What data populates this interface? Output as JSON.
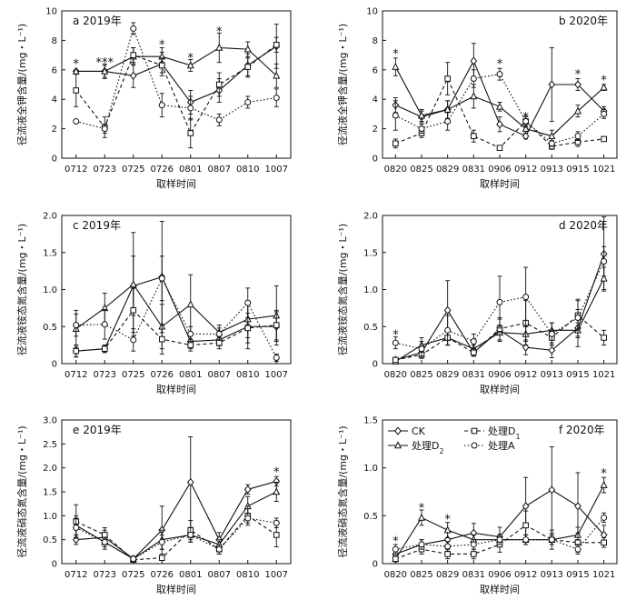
{
  "chart_data": [
    {
      "type": "line",
      "title": "a 2019年",
      "xlabel": "取样时间",
      "ylabel": "径流液全钾含量/(mg・L⁻¹)",
      "ylim": [
        0,
        10
      ],
      "yticks": [
        "0",
        "2",
        "4",
        "6",
        "8",
        "10"
      ],
      "categories": [
        "0712",
        "0723",
        "0725",
        "0726",
        "0801",
        "0807",
        "0810",
        "1007"
      ],
      "series": [
        {
          "name": "CK",
          "marker": "diamond",
          "dash": "solid",
          "values": [
            5.9,
            5.9,
            5.6,
            6.4,
            3.8,
            4.6,
            6.3,
            7.6
          ],
          "errors": [
            0,
            0.4,
            0.8,
            0.8,
            0.8,
            0.8,
            0.8,
            1.5
          ]
        },
        {
          "name": "处理D₂",
          "marker": "triangle",
          "dash": "solid",
          "values": [
            5.9,
            5.9,
            6.9,
            6.9,
            6.3,
            7.5,
            7.4,
            5.6
          ],
          "errors": [
            0,
            0.5,
            0.6,
            0.6,
            0.4,
            1.0,
            0.5,
            0.8
          ]
        },
        {
          "name": "处理D₁",
          "marker": "square",
          "dash": "dashed",
          "values": [
            4.6,
            2.1,
            7.0,
            6.3,
            1.7,
            5.0,
            6.2,
            7.7
          ],
          "errors": [
            1.1,
            0.7,
            0.5,
            0.5,
            1.0,
            0.8,
            0.6,
            0.5
          ]
        },
        {
          "name": "处理A",
          "marker": "circle",
          "dash": "dotted",
          "values": [
            2.5,
            2.0,
            8.8,
            3.6,
            3.4,
            2.6,
            3.8,
            4.1
          ],
          "errors": [
            0,
            0.3,
            0.4,
            0.8,
            0.8,
            0.4,
            0.4,
            0.6
          ]
        }
      ],
      "annotations": [
        {
          "category": "0712",
          "text": "*",
          "y": 6.5
        },
        {
          "category": "0723",
          "text": "***",
          "y": 6.6
        },
        {
          "category": "0726",
          "text": "*",
          "y": 7.8
        },
        {
          "category": "0801",
          "text": "*",
          "y": 6.9
        },
        {
          "category": "0807",
          "text": "*",
          "y": 8.7
        }
      ]
    },
    {
      "type": "line",
      "title": "b 2020年",
      "xlabel": "取样时间",
      "ylabel": "径流液全钾含量/(mg・L⁻¹)",
      "ylim": [
        0,
        10
      ],
      "yticks": [
        "0",
        "2",
        "4",
        "6",
        "8",
        "10"
      ],
      "categories": [
        "0820",
        "0825",
        "0829",
        "0831",
        "0906",
        "0912",
        "0913",
        "0915",
        "1021"
      ],
      "series": [
        {
          "name": "CK",
          "marker": "diamond",
          "dash": "solid",
          "values": [
            3.6,
            2.8,
            3.3,
            6.6,
            2.3,
            1.5,
            5.0,
            5.0,
            3.2
          ],
          "errors": [
            0.5,
            0.4,
            0.6,
            1.2,
            0.5,
            0.2,
            2.5,
            0.4,
            0.3
          ]
        },
        {
          "name": "处理D₂",
          "marker": "triangle",
          "dash": "solid",
          "values": [
            6.2,
            2.9,
            3.3,
            4.2,
            3.5,
            2.0,
            1.5,
            3.2,
            4.8
          ],
          "errors": [
            0.6,
            0.4,
            0.6,
            0.8,
            0.3,
            0.3,
            0.4,
            0.4,
            0.2
          ]
        },
        {
          "name": "处理D₁",
          "marker": "square",
          "dash": "dashed",
          "values": [
            1.0,
            1.7,
            5.4,
            1.5,
            0.7,
            2.5,
            0.8,
            1.1,
            1.3
          ],
          "errors": [
            0.3,
            0.3,
            1.1,
            0.4,
            0.1,
            0.3,
            0.2,
            0.3,
            0.1
          ]
        },
        {
          "name": "处理A",
          "marker": "circle",
          "dash": "dotted",
          "values": [
            2.9,
            2.0,
            2.5,
            5.4,
            5.7,
            2.5,
            1.0,
            1.5,
            3.0
          ],
          "errors": [
            1.0,
            0.3,
            0.6,
            0.6,
            0.4,
            0.4,
            0.2,
            0.3,
            0.3
          ]
        }
      ],
      "annotations": [
        {
          "category": "0820",
          "text": "*",
          "y": 7.2
        },
        {
          "category": "0906",
          "text": "*",
          "y": 6.5
        },
        {
          "category": "0912",
          "text": "*",
          "y": 2.9
        },
        {
          "category": "0915",
          "text": "*",
          "y": 5.8
        },
        {
          "category": "1021",
          "text": "*",
          "y": 5.4
        }
      ]
    },
    {
      "type": "line",
      "title": "c 2019年",
      "xlabel": "取样时间",
      "ylabel": "径流液铵态氮含量/(mg・L⁻¹)",
      "ylim": [
        0,
        2.0
      ],
      "yticks": [
        "0",
        "0.5",
        "1.0",
        "1.5",
        "2.0"
      ],
      "categories": [
        "0712",
        "0723",
        "0725",
        "0726",
        "0801",
        "0807",
        "0810",
        "1007"
      ],
      "series": [
        {
          "name": "CK",
          "marker": "diamond",
          "dash": "solid",
          "values": [
            0.17,
            0.2,
            1.05,
            1.17,
            0.3,
            0.32,
            0.5,
            0.5
          ],
          "errors": [
            0.08,
            0.05,
            0.4,
            0.75,
            0.1,
            0.08,
            0.3,
            0.2
          ]
        },
        {
          "name": "处理D₂",
          "marker": "triangle",
          "dash": "solid",
          "values": [
            0.47,
            0.75,
            1.07,
            0.5,
            0.8,
            0.42,
            0.6,
            0.65
          ],
          "errors": [
            0.25,
            0.2,
            0.7,
            0.3,
            0.4,
            0.1,
            0.25,
            0.4
          ]
        },
        {
          "name": "处理D₁",
          "marker": "square",
          "dash": "dashed",
          "values": [
            0.17,
            0.2,
            0.72,
            0.33,
            0.25,
            0.28,
            0.48,
            0.52
          ],
          "errors": [
            0.08,
            0.05,
            0.3,
            0.2,
            0.08,
            0.08,
            0.2,
            0.2
          ]
        },
        {
          "name": "处理A",
          "marker": "circle",
          "dash": "dotted",
          "values": [
            0.52,
            0.53,
            0.32,
            1.15,
            0.4,
            0.4,
            0.82,
            0.08
          ],
          "errors": [
            0.15,
            0.2,
            0.15,
            0.3,
            0.1,
            0.08,
            0.2,
            0.05
          ]
        }
      ],
      "annotations": []
    },
    {
      "type": "line",
      "title": "d 2020年",
      "xlabel": "取样时间",
      "ylabel": "径流液铵态氮含量/(mg・L⁻¹)",
      "ylim": [
        0,
        2.0
      ],
      "yticks": [
        "0",
        "0.5",
        "1.0",
        "1.5",
        "2.0"
      ],
      "categories": [
        "0820",
        "0825",
        "0829",
        "0831",
        "0906",
        "0912",
        "0913",
        "0915",
        "1021"
      ],
      "series": [
        {
          "name": "CK",
          "marker": "diamond",
          "dash": "solid",
          "values": [
            0.05,
            0.15,
            0.72,
            0.15,
            0.45,
            0.22,
            0.18,
            0.48,
            1.48
          ],
          "errors": [
            0.03,
            0.05,
            0.4,
            0.05,
            0.15,
            0.1,
            0.1,
            0.25,
            0.5
          ]
        },
        {
          "name": "处理D₂",
          "marker": "triangle",
          "dash": "solid",
          "values": [
            0.03,
            0.25,
            0.35,
            0.2,
            0.42,
            0.4,
            0.45,
            0.45,
            1.15
          ],
          "errors": [
            0.03,
            0.1,
            0.1,
            0.05,
            0.1,
            0.1,
            0.1,
            0.1,
            0.15
          ]
        },
        {
          "name": "处理D₁",
          "marker": "square",
          "dash": "dashed",
          "values": [
            0.05,
            0.12,
            0.35,
            0.15,
            0.47,
            0.55,
            0.35,
            0.65,
            0.35
          ],
          "errors": [
            0.03,
            0.05,
            0.1,
            0.05,
            0.15,
            0.3,
            0.1,
            0.2,
            0.1
          ]
        },
        {
          "name": "处理A",
          "marker": "circle",
          "dash": "dotted",
          "values": [
            0.28,
            0.2,
            0.45,
            0.3,
            0.83,
            0.9,
            0.4,
            0.62,
            1.38
          ],
          "errors": [
            0.08,
            0.1,
            0.2,
            0.1,
            0.35,
            0.4,
            0.15,
            0.25,
            0.2
          ]
        }
      ],
      "annotations": [
        {
          "category": "0820",
          "text": "*",
          "y": 0.41
        }
      ]
    },
    {
      "type": "line",
      "title": "e 2019年",
      "xlabel": "取样时间",
      "ylabel": "径流液硝态氮含量/(mg・L⁻¹)",
      "ylim": [
        0,
        3.0
      ],
      "yticks": [
        "0",
        "0.5",
        "1.0",
        "1.5",
        "2.0",
        "2.5",
        "3.0"
      ],
      "categories": [
        "0712",
        "0723",
        "0725",
        "0726",
        "0801",
        "0807",
        "0810",
        "1007"
      ],
      "series": [
        {
          "name": "CK",
          "marker": "diamond",
          "dash": "solid",
          "values": [
            0.5,
            0.55,
            0.1,
            0.7,
            1.7,
            0.5,
            1.55,
            1.72
          ],
          "errors": [
            0.1,
            0.15,
            0.05,
            0.5,
            0.95,
            0.15,
            0.1,
            0.1
          ]
        },
        {
          "name": "处理D₂",
          "marker": "triangle",
          "dash": "solid",
          "values": [
            0.8,
            0.45,
            0.1,
            0.5,
            0.6,
            0.4,
            1.2,
            1.5
          ],
          "errors": [
            0.2,
            0.15,
            0.05,
            0.2,
            0.15,
            0.1,
            0.2,
            0.2
          ]
        },
        {
          "name": "处理D₁",
          "marker": "square",
          "dash": "dashed",
          "values": [
            0.88,
            0.6,
            0.08,
            0.12,
            0.7,
            0.3,
            1.0,
            0.6
          ],
          "errors": [
            0.35,
            0.15,
            0.05,
            0.05,
            0.2,
            0.1,
            0.2,
            0.25
          ]
        },
        {
          "name": "处理A",
          "marker": "circle",
          "dash": "dotted",
          "values": [
            0.75,
            0.45,
            0.1,
            0.45,
            0.6,
            0.3,
            0.95,
            0.85
          ],
          "errors": [
            0.2,
            0.1,
            0.05,
            0.15,
            0.15,
            0.1,
            0.1,
            0.1
          ]
        }
      ],
      "annotations": [
        {
          "category": "1007",
          "text": "*",
          "y": 1.95
        }
      ]
    },
    {
      "type": "line",
      "title": "f 2020年",
      "xlabel": "取样时间",
      "ylabel": "径流液硝态氮含量/(mg・L⁻¹)",
      "ylim": [
        0,
        1.5
      ],
      "yticks": [
        "0",
        "0.5",
        "1.0",
        "1.5"
      ],
      "categories": [
        "0820",
        "0825",
        "0829",
        "0831",
        "0906",
        "0912",
        "0913",
        "0915",
        "1021"
      ],
      "series": [
        {
          "name": "CK",
          "marker": "diamond",
          "dash": "solid",
          "values": [
            0.1,
            0.2,
            0.25,
            0.32,
            0.28,
            0.6,
            0.77,
            0.6,
            0.3
          ],
          "errors": [
            0.05,
            0.05,
            0.1,
            0.1,
            0.1,
            0.3,
            0.45,
            0.35,
            0.1
          ]
        },
        {
          "name": "处理D₂",
          "marker": "triangle",
          "dash": "solid",
          "values": [
            0.05,
            0.48,
            0.35,
            0.25,
            0.25,
            0.25,
            0.25,
            0.3,
            0.82
          ],
          "errors": [
            0.03,
            0.08,
            0.08,
            0.05,
            0.05,
            0.05,
            0.05,
            0.08,
            0.08
          ]
        },
        {
          "name": "处理D₁",
          "marker": "square",
          "dash": "dashed",
          "values": [
            0.05,
            0.15,
            0.1,
            0.1,
            0.2,
            0.4,
            0.25,
            0.22,
            0.22
          ],
          "errors": [
            0.03,
            0.05,
            0.05,
            0.05,
            0.08,
            0.15,
            0.1,
            0.1,
            0.05
          ]
        },
        {
          "name": "处理A",
          "marker": "circle",
          "dash": "dotted",
          "values": [
            0.15,
            0.2,
            0.18,
            0.2,
            0.25,
            0.25,
            0.25,
            0.15,
            0.48
          ],
          "errors": [
            0.05,
            0.05,
            0.05,
            0.05,
            0.05,
            0.05,
            0.05,
            0.05,
            0.05
          ]
        }
      ],
      "annotations": [
        {
          "category": "0820",
          "text": "*",
          "y": 0.25
        },
        {
          "category": "0825",
          "text": "*",
          "y": 0.6
        },
        {
          "category": "0829",
          "text": "*",
          "y": 0.48
        },
        {
          "category": "1021",
          "text": "*",
          "y": 0.96
        }
      ]
    }
  ],
  "legend": {
    "placement": "top-left of panel f",
    "entries": [
      {
        "label": "CK",
        "marker": "diamond",
        "dash": "solid"
      },
      {
        "label": "处理D",
        "sub": "1",
        "marker": "square",
        "dash": "dashed"
      },
      {
        "label": "处理D",
        "sub": "2",
        "marker": "triangle",
        "dash": "solid"
      },
      {
        "label": "处理A",
        "marker": "circle",
        "dash": "dotted"
      }
    ]
  }
}
